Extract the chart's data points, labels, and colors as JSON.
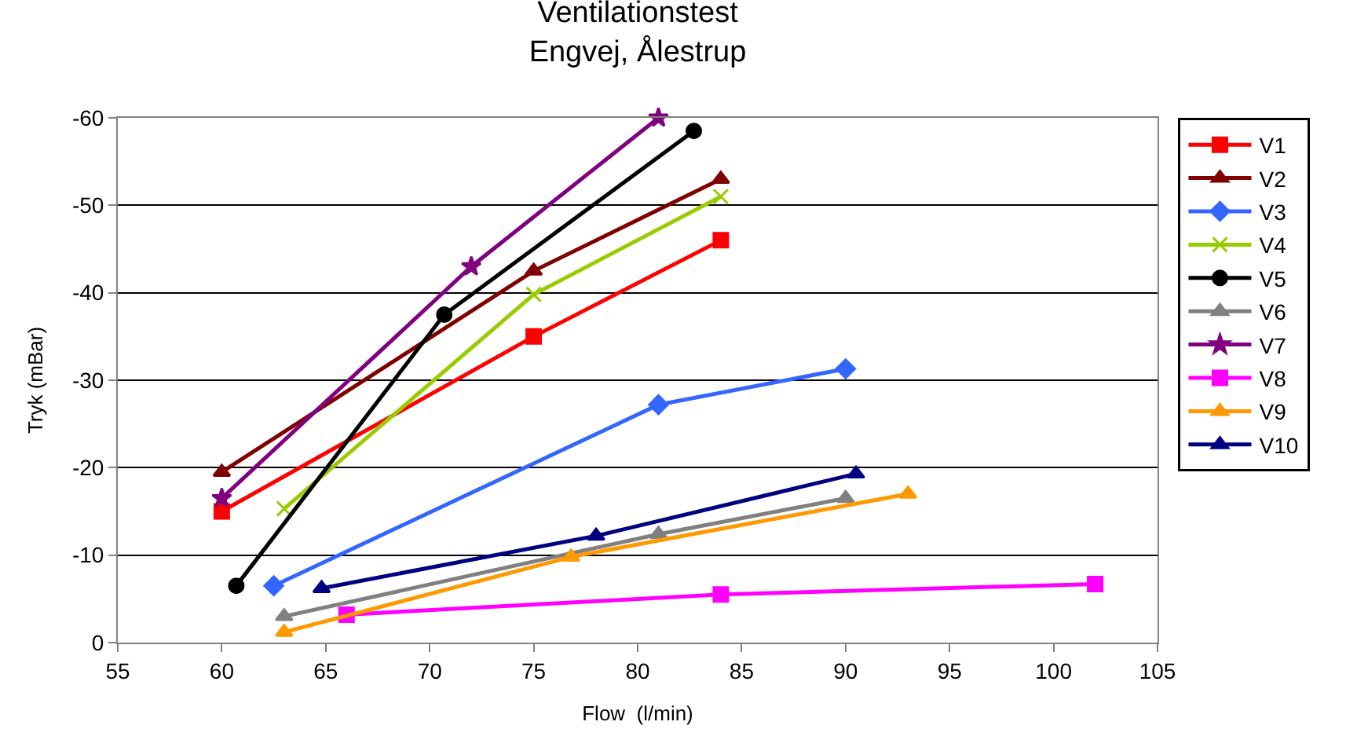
{
  "chart_data": {
    "type": "line",
    "title": "Ventilationstest\nEngvej, Ålestrup",
    "xlabel": "Flow  (l/min)",
    "ylabel": "Tryk (mBar)",
    "xlim": [
      55,
      105
    ],
    "xticks": [
      55,
      60,
      65,
      70,
      75,
      80,
      85,
      90,
      95,
      100,
      105
    ],
    "ylim": [
      0,
      -60
    ],
    "yticks": [
      0,
      -10,
      -20,
      -30,
      -40,
      -50,
      -60
    ],
    "grid": "y",
    "legend": "right",
    "line_style": "solid",
    "series": [
      {
        "name": "V1",
        "color": "#ff0000",
        "marker": "square",
        "x": [
          60,
          75,
          84
        ],
        "values": [
          -15,
          -35,
          -46
        ]
      },
      {
        "name": "V2",
        "color": "#800000",
        "marker": "triangle",
        "x": [
          60,
          75,
          84
        ],
        "values": [
          -19.5,
          -42.5,
          -53
        ]
      },
      {
        "name": "V3",
        "color": "#3366ff",
        "marker": "diamond",
        "x": [
          62.5,
          81,
          90
        ],
        "values": [
          -6.5,
          -27.2,
          -31.3
        ]
      },
      {
        "name": "V4",
        "color": "#99cc00",
        "marker": "cross",
        "x": [
          63,
          75,
          84
        ],
        "values": [
          -15.3,
          -39.8,
          -51
        ]
      },
      {
        "name": "V5",
        "color": "#000000",
        "marker": "circle",
        "x": [
          60.7,
          70.7,
          82.7
        ],
        "values": [
          -6.5,
          -37.5,
          -58.5
        ]
      },
      {
        "name": "V6",
        "color": "#808080",
        "marker": "triangle",
        "x": [
          63,
          81,
          90
        ],
        "values": [
          -3,
          -12.4,
          -16.5
        ]
      },
      {
        "name": "V7",
        "color": "#800080",
        "marker": "star",
        "x": [
          60,
          72,
          81
        ],
        "values": [
          -16.5,
          -43,
          -60
        ]
      },
      {
        "name": "V8",
        "color": "#ff00ff",
        "marker": "square",
        "x": [
          66,
          84,
          102
        ],
        "values": [
          -3.2,
          -5.5,
          -6.7
        ]
      },
      {
        "name": "V9",
        "color": "#ff9900",
        "marker": "triangle",
        "x": [
          63,
          76.8,
          93
        ],
        "values": [
          -1.2,
          -9.8,
          -17
        ]
      },
      {
        "name": "V10",
        "color": "#000080",
        "marker": "triangle",
        "x": [
          64.8,
          78,
          90.5
        ],
        "values": [
          -6.2,
          -12.2,
          -19.3
        ]
      }
    ]
  }
}
